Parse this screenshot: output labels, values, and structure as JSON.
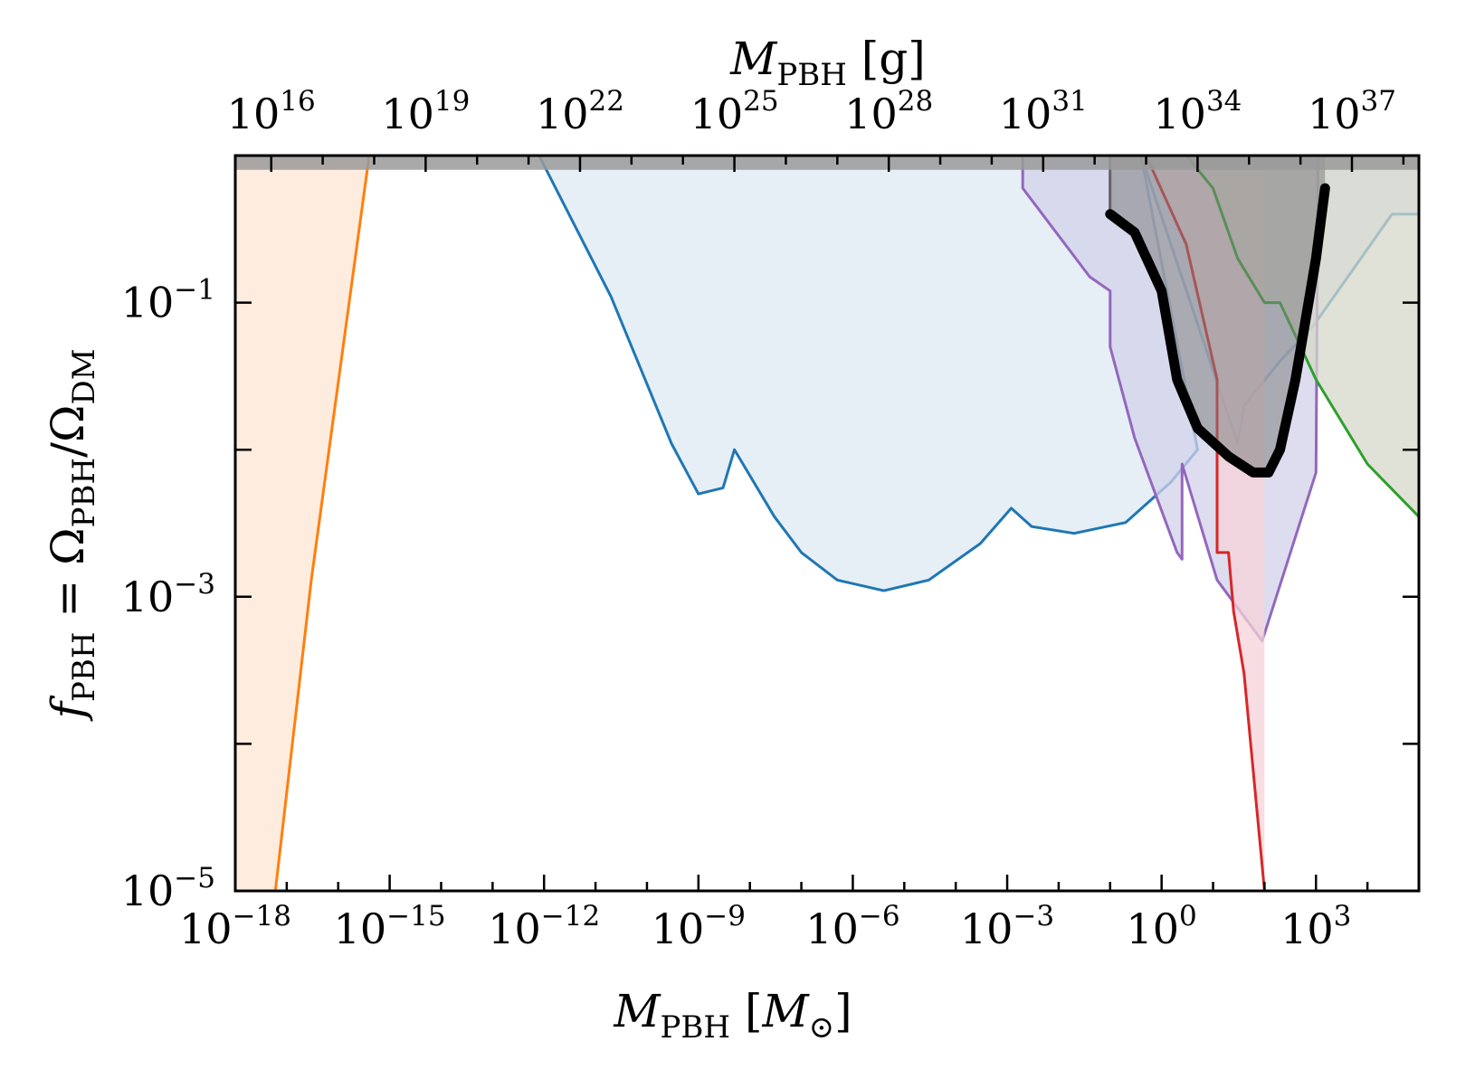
{
  "chart_data": {
    "type": "area",
    "xlabel": {
      "base": "M",
      "sub": "PBH",
      "unit_open": "[",
      "unit": "M",
      "unit_sub": "⊙",
      "unit_close": "]"
    },
    "x2label": {
      "base": "M",
      "sub": "PBH",
      "unit": "[g]"
    },
    "ylabel": {
      "f": "f",
      "f_sub": "PBH",
      "eq": " = Ω",
      "num_sub": "PBH",
      "slash": "/Ω",
      "den_sub": "DM"
    },
    "x_scale": "log",
    "y_scale": "log",
    "xlim": [
      1e-18,
      100000.0
    ],
    "ylim": [
      1e-05,
      1
    ],
    "x2lim": [
      2000000000000000.0,
      2e+38
    ],
    "x_ticks": [
      {
        "value": 1e-18,
        "label": "10",
        "exp": "−18"
      },
      {
        "value": 1e-15,
        "label": "10",
        "exp": "−15"
      },
      {
        "value": 1e-12,
        "label": "10",
        "exp": "−12"
      },
      {
        "value": 1e-09,
        "label": "10",
        "exp": "−9"
      },
      {
        "value": 1e-06,
        "label": "10",
        "exp": "−6"
      },
      {
        "value": 0.001,
        "label": "10",
        "exp": "−3"
      },
      {
        "value": 1,
        "label": "10",
        "exp": "0"
      },
      {
        "value": 1000.0,
        "label": "10",
        "exp": "3"
      }
    ],
    "x2_ticks": [
      {
        "value": 1e+16,
        "label": "10",
        "exp": "16"
      },
      {
        "value": 1e+19,
        "label": "10",
        "exp": "19"
      },
      {
        "value": 1e+22,
        "label": "10",
        "exp": "22"
      },
      {
        "value": 1e+25,
        "label": "10",
        "exp": "25"
      },
      {
        "value": 1e+28,
        "label": "10",
        "exp": "28"
      },
      {
        "value": 1e+31,
        "label": "10",
        "exp": "31"
      },
      {
        "value": 1e+34,
        "label": "10",
        "exp": "34"
      },
      {
        "value": 1e+37,
        "label": "10",
        "exp": "37"
      }
    ],
    "y_ticks": [
      {
        "value": 1e-05,
        "label": "10",
        "exp": "−5"
      },
      {
        "value": 0.001,
        "label": "10",
        "exp": "−3"
      },
      {
        "value": 0.1,
        "label": "10",
        "exp": "−1"
      }
    ],
    "grid": false,
    "series": [
      {
        "color": "#ff7f0e",
        "fill": "#fde6d3",
        "fill_to": "left",
        "points": [
          [
            6e-18,
            1e-05
          ],
          [
            3e-17,
            0.0013
          ],
          [
            4e-16,
            1
          ]
        ]
      },
      {
        "color": "#1f77b4",
        "fill": "#dde9f3",
        "fill_to": "top",
        "points": [
          [
            8e-13,
            1
          ],
          [
            2e-11,
            0.11
          ],
          [
            3e-10,
            0.011
          ],
          [
            1e-09,
            0.005
          ],
          [
            3e-09,
            0.0055
          ],
          [
            5e-09,
            0.01
          ],
          [
            3e-08,
            0.0035
          ],
          [
            1e-07,
            0.002
          ],
          [
            5e-07,
            0.0013
          ],
          [
            4e-06,
            0.0011
          ],
          [
            3e-05,
            0.0013
          ],
          [
            0.0003,
            0.0023
          ],
          [
            0.0012,
            0.004
          ],
          [
            0.003,
            0.003
          ],
          [
            0.02,
            0.0027
          ],
          [
            0.2,
            0.0032
          ],
          [
            1.5,
            0.006
          ],
          [
            5,
            0.01
          ],
          [
            0.4,
            1
          ],
          [
            30,
            0.011
          ],
          [
            40,
            0.02
          ],
          [
            200,
            0.04
          ],
          [
            900,
            0.07
          ],
          [
            30000.0,
            0.4
          ],
          [
            100000.0,
            0.4
          ]
        ]
      },
      {
        "color": "#9467bd",
        "fill": "#d1d2ea",
        "fill_to": "top",
        "points": [
          [
            0.002,
            1
          ],
          [
            0.002,
            0.6
          ],
          [
            0.04,
            0.15
          ],
          [
            0.1,
            0.12
          ],
          [
            0.1,
            0.05
          ],
          [
            0.3,
            0.012
          ],
          [
            2,
            0.002
          ],
          [
            2.5,
            0.0018
          ],
          [
            2.5,
            0.008
          ],
          [
            12,
            0.0013
          ],
          [
            90,
            0.0005
          ],
          [
            1000.0,
            0.007
          ],
          [
            1100.0,
            1
          ]
        ]
      },
      {
        "color": "#d62728",
        "fill": "#f5d2d8",
        "fill_to": "top",
        "points": [
          [
            0.5,
            1
          ],
          [
            3,
            0.25
          ],
          [
            12,
            0.03
          ],
          [
            12,
            0.002
          ],
          [
            20,
            0.002
          ],
          [
            25,
            0.0008
          ],
          [
            40,
            0.0003
          ],
          [
            100,
            1e-05
          ]
        ]
      },
      {
        "color": "#2ca02c",
        "fill": "#d6d7c9",
        "fill_to": "top",
        "points": [
          [
            3,
            1
          ],
          [
            10,
            0.6
          ],
          [
            30,
            0.2
          ],
          [
            100,
            0.1
          ],
          [
            200,
            0.1
          ],
          [
            1000.0,
            0.03
          ],
          [
            10000.0,
            0.008
          ],
          [
            100000.0,
            0.0035
          ]
        ]
      },
      {
        "color": "#555555",
        "fill": "#8f8f8f",
        "fill_to": "top",
        "thick": false,
        "points": [
          [
            0.1,
            1
          ],
          [
            0.1,
            0.4
          ]
        ]
      },
      {
        "color": "#000000",
        "fill": "#808080",
        "fill_to": "top",
        "thick": true,
        "points": [
          [
            0.1,
            0.4
          ],
          [
            0.3,
            0.3
          ],
          [
            1,
            0.12
          ],
          [
            2,
            0.03
          ],
          [
            5,
            0.014
          ],
          [
            20,
            0.009
          ],
          [
            60,
            0.007
          ],
          [
            120,
            0.007
          ],
          [
            200,
            0.01
          ],
          [
            400,
            0.03
          ],
          [
            1000.0,
            0.2
          ],
          [
            1500.0,
            0.6
          ]
        ]
      }
    ],
    "top_band": {
      "from": 0.8,
      "to": 1.0,
      "fill": "#9a9a9a"
    }
  }
}
